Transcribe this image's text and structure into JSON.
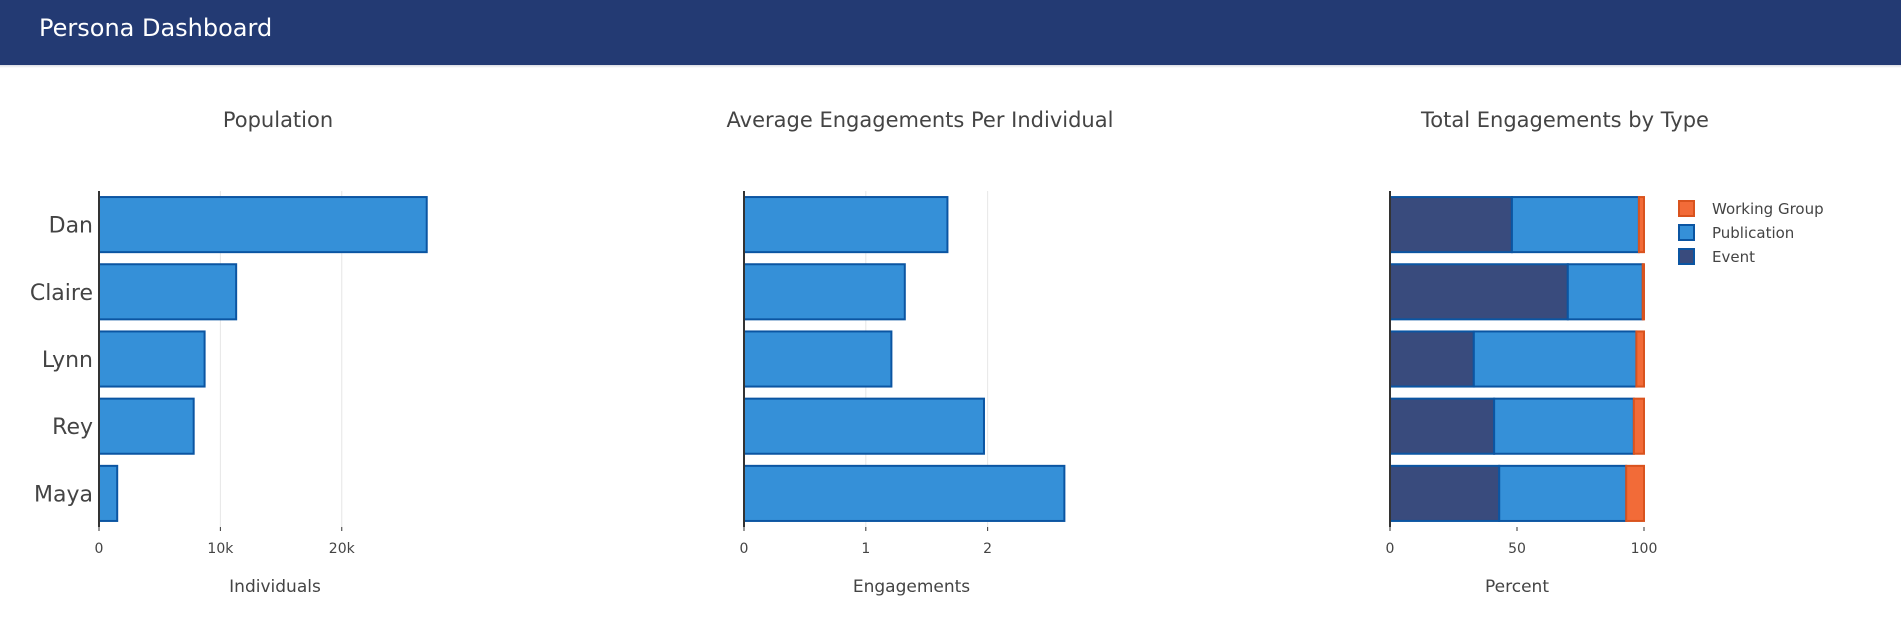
{
  "header": {
    "title": "Persona Dashboard"
  },
  "colors": {
    "header_bg": "#233a73",
    "bar_fill": "#3590d8",
    "bar_stroke": "#0b55a2",
    "event": "#394b7d",
    "publication": "#3590d8",
    "working_group": "#f26b38",
    "working_group_stroke": "#d9531e",
    "grid": "#e6e6e6",
    "axis": "#333333"
  },
  "chart_data": [
    {
      "type": "bar",
      "orientation": "horizontal",
      "title": "Population",
      "xlabel": "Individuals",
      "categories": [
        "Dan",
        "Claire",
        "Lynn",
        "Rey",
        "Maya"
      ],
      "values": [
        27000,
        11300,
        8700,
        7800,
        1500
      ],
      "xlim": [
        0,
        29000
      ],
      "xticks": [
        0,
        10000,
        20000
      ],
      "xtick_labels": [
        "0",
        "10k",
        "20k"
      ],
      "grid": true
    },
    {
      "type": "bar",
      "orientation": "horizontal",
      "title": "Average Engagements Per Individual",
      "xlabel": "Engagements",
      "categories": [
        "Dan",
        "Claire",
        "Lynn",
        "Rey",
        "Maya"
      ],
      "values": [
        1.67,
        1.32,
        1.21,
        1.97,
        2.63
      ],
      "xlim": [
        0,
        2.75
      ],
      "xticks": [
        0,
        1,
        2
      ],
      "xtick_labels": [
        "0",
        "1",
        "2"
      ],
      "grid": true
    },
    {
      "type": "bar",
      "orientation": "horizontal",
      "stacked": true,
      "title": "Total Engagements by Type",
      "xlabel": "Percent",
      "categories": [
        "Dan",
        "Claire",
        "Lynn",
        "Rey",
        "Maya"
      ],
      "series": [
        {
          "name": "Event",
          "values": [
            48,
            70,
            33,
            41,
            43
          ]
        },
        {
          "name": "Publication",
          "values": [
            50,
            29.5,
            64,
            55,
            50
          ]
        },
        {
          "name": "Working Group",
          "values": [
            2,
            0.5,
            3,
            4,
            7
          ]
        }
      ],
      "xlim": [
        0,
        100
      ],
      "xticks": [
        0,
        50,
        100
      ],
      "xtick_labels": [
        "0",
        "50",
        "100"
      ],
      "legend_position": "top-right",
      "grid": false
    }
  ]
}
